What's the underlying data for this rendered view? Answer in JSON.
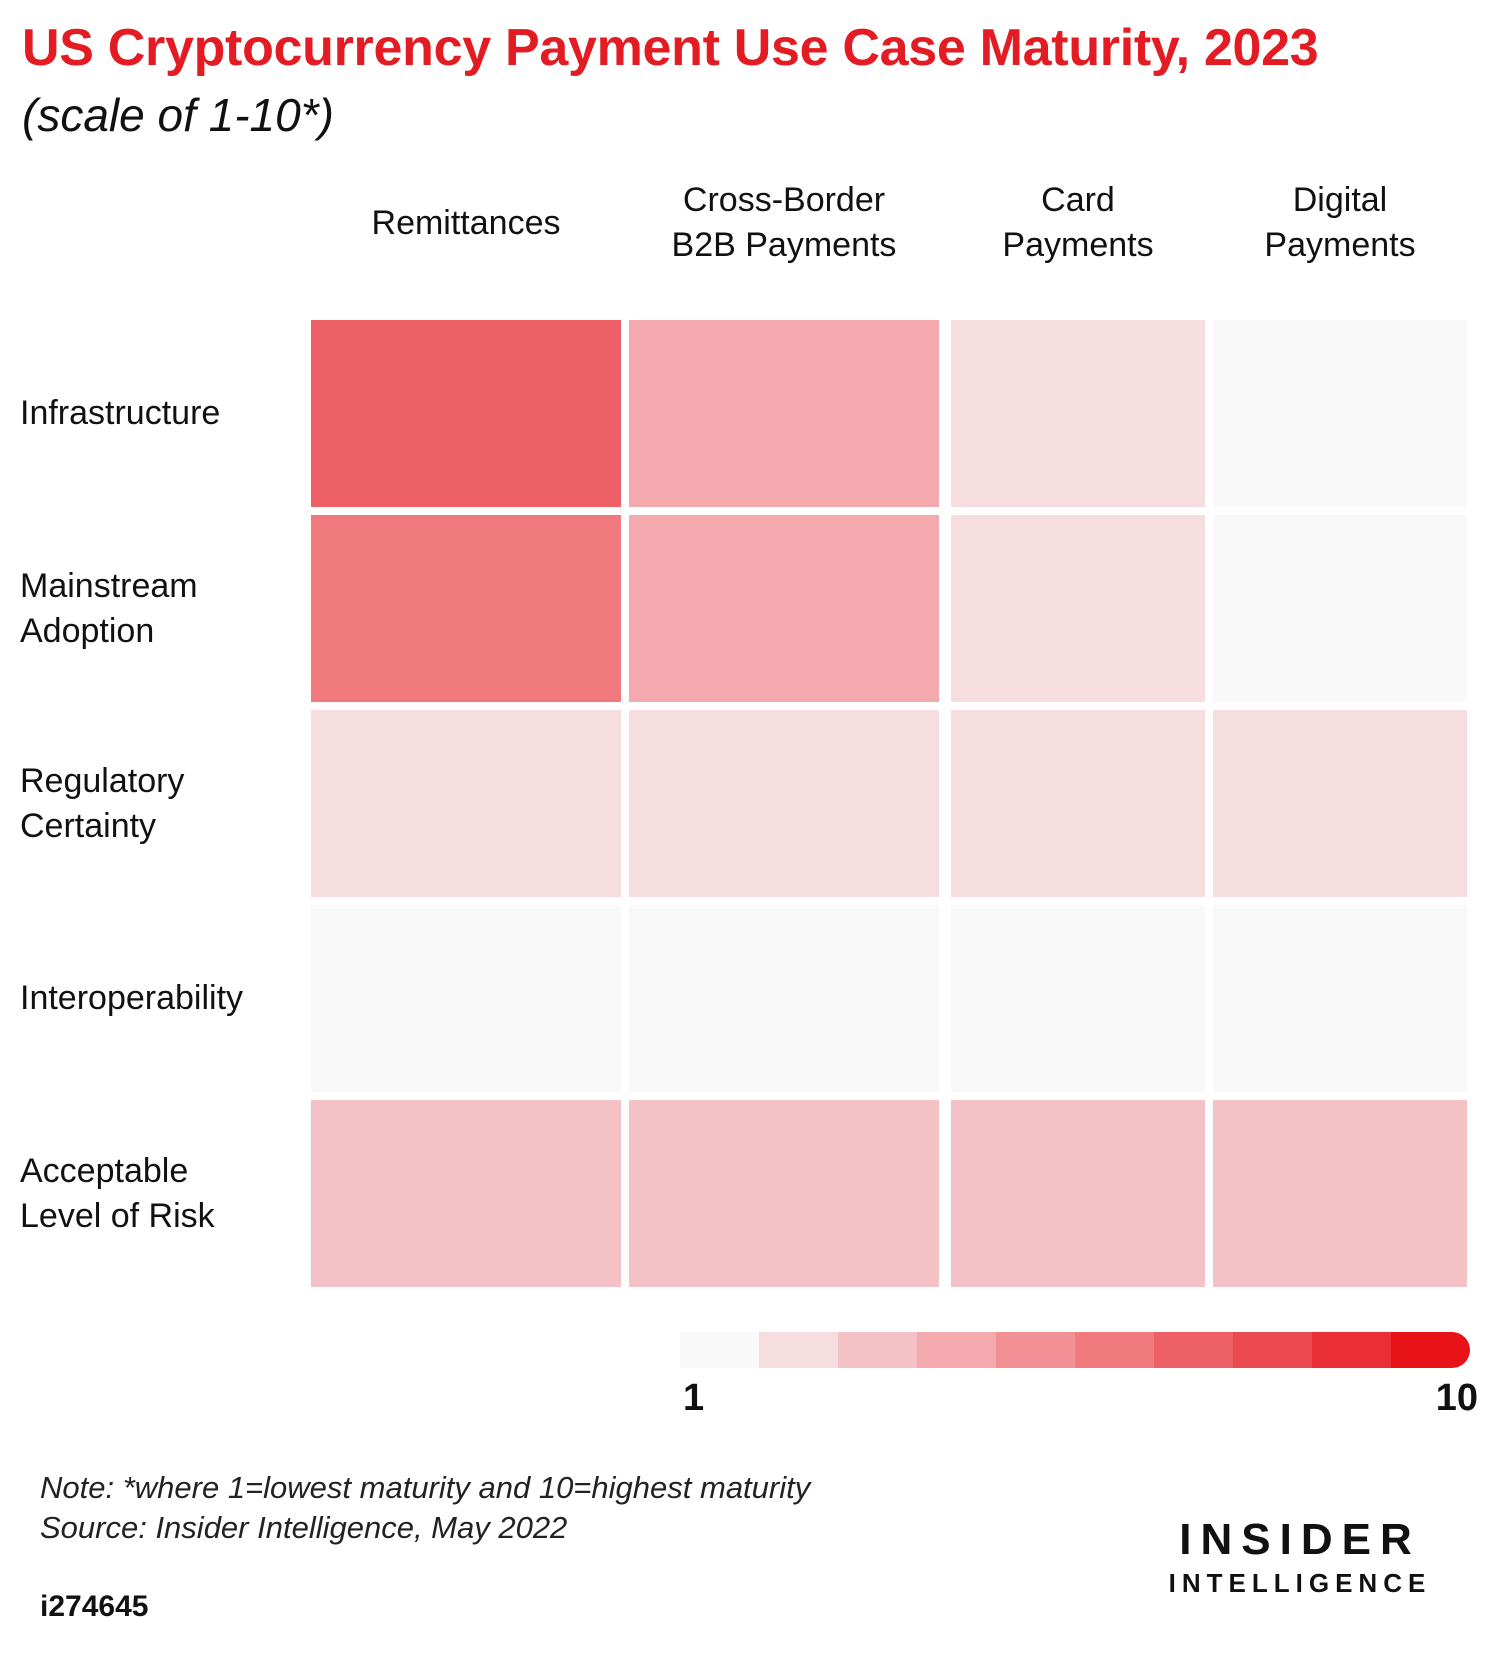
{
  "header": {
    "title": "US Cryptocurrency Payment Use Case Maturity, 2023",
    "subtitle": "(scale of 1-10*)"
  },
  "colors": {
    "accent": "#e31b23",
    "scale": [
      "#f9f9f9",
      "#f6dde0",
      "#f4c2c6",
      "#f4a9ae",
      "#f19195",
      "#f07a7e",
      "#ed6066",
      "#ec4a51",
      "#ea2e35",
      "#e81219"
    ]
  },
  "chart_data": {
    "type": "heatmap",
    "title": "US Cryptocurrency Payment Use Case Maturity, 2023",
    "subtitle": "(scale of 1-10*)",
    "columns": [
      "Remittances",
      "Cross-Border\nB2B Payments",
      "Card\nPayments",
      "Digital\nPayments"
    ],
    "rows": [
      "Infrastructure",
      "Mainstream\nAdoption",
      "Regulatory\nCertainty",
      "Interoperability",
      "Acceptable\nLevel of Risk"
    ],
    "values": [
      [
        7,
        4,
        2,
        1
      ],
      [
        6,
        4,
        2,
        1
      ],
      [
        2,
        2,
        2,
        2
      ],
      [
        1,
        1,
        1,
        1
      ],
      [
        3,
        3,
        3,
        3
      ]
    ],
    "scale_min": 1,
    "scale_max": 10,
    "legend": {
      "min_label": "1",
      "max_label": "10",
      "placement": "bottom-right"
    }
  },
  "footer": {
    "note": "Note: *where 1=lowest maturity and 10=highest maturity",
    "source": "Source: Insider Intelligence, May 2022",
    "chart_id": "i274645",
    "brand_line1": "INSIDER",
    "brand_line2": "INTELLIGENCE"
  }
}
